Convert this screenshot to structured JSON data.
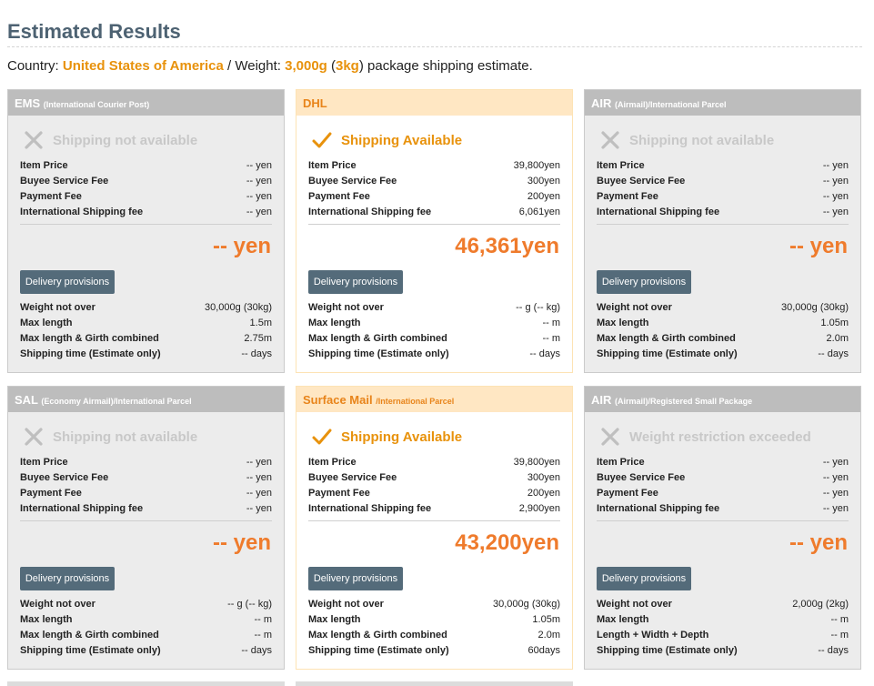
{
  "page": {
    "title": "Estimated Results",
    "summary": {
      "country_label": "Country: ",
      "country": "United States of America",
      "weight_label": " / Weight: ",
      "weight_g": "3,000g",
      "open_paren": " (",
      "weight_kg": "3kg",
      "close_paren": ")",
      "tail": " package shipping estimate."
    }
  },
  "colors": {
    "title": "#4d6272",
    "highlight": "#e8920c",
    "total_price": "#ef7b2c",
    "button": "#546b7a",
    "available_header_bg": "#ffe7c3",
    "unavailable_header_bg": "#bdbdbd"
  },
  "icons": {
    "available": "check-icon",
    "unavailable": "x-icon"
  },
  "cards": [
    {
      "name": "EMS",
      "sub": "(International Courier Post)",
      "available": false,
      "status": "Shipping not available",
      "fees": [
        {
          "label": "Item Price",
          "value": "-- yen"
        },
        {
          "label": "Buyee Service Fee",
          "value": "-- yen"
        },
        {
          "label": "Payment Fee",
          "value": "-- yen"
        },
        {
          "label": "International Shipping fee",
          "value": "-- yen"
        }
      ],
      "total": "-- yen",
      "button": "Delivery provisions",
      "specs": [
        {
          "label": "Weight not over",
          "value": "30,000g (30kg)"
        },
        {
          "label": "Max length",
          "value": "1.5m"
        },
        {
          "label": "Max length & Girth combined",
          "value": "2.75m"
        },
        {
          "label": "Shipping time (Estimate only)",
          "value": "-- days"
        }
      ]
    },
    {
      "name": "DHL",
      "sub": "",
      "available": true,
      "status": "Shipping Available",
      "fees": [
        {
          "label": "Item Price",
          "value": "39,800yen"
        },
        {
          "label": "Buyee Service Fee",
          "value": "300yen"
        },
        {
          "label": "Payment Fee",
          "value": "200yen"
        },
        {
          "label": "International Shipping fee",
          "value": "6,061yen"
        }
      ],
      "total": "46,361yen",
      "button": "Delivery provisions",
      "specs": [
        {
          "label": "Weight not over",
          "value": "-- g (-- kg)"
        },
        {
          "label": "Max length",
          "value": "-- m"
        },
        {
          "label": "Max length & Girth combined",
          "value": "-- m"
        },
        {
          "label": "Shipping time (Estimate only)",
          "value": "-- days"
        }
      ]
    },
    {
      "name": "AIR",
      "sub": "(Airmail)/International Parcel",
      "available": false,
      "status": "Shipping not available",
      "fees": [
        {
          "label": "Item Price",
          "value": "-- yen"
        },
        {
          "label": "Buyee Service Fee",
          "value": "-- yen"
        },
        {
          "label": "Payment Fee",
          "value": "-- yen"
        },
        {
          "label": "International Shipping fee",
          "value": "-- yen"
        }
      ],
      "total": "-- yen",
      "button": "Delivery provisions",
      "specs": [
        {
          "label": "Weight not over",
          "value": "30,000g (30kg)"
        },
        {
          "label": "Max length",
          "value": "1.05m"
        },
        {
          "label": "Max length & Girth combined",
          "value": "2.0m"
        },
        {
          "label": "Shipping time (Estimate only)",
          "value": "-- days"
        }
      ]
    },
    {
      "name": "SAL",
      "sub": "(Economy Airmail)/International Parcel",
      "available": false,
      "status": "Shipping not available",
      "fees": [
        {
          "label": "Item Price",
          "value": "-- yen"
        },
        {
          "label": "Buyee Service Fee",
          "value": "-- yen"
        },
        {
          "label": "Payment Fee",
          "value": "-- yen"
        },
        {
          "label": "International Shipping fee",
          "value": "-- yen"
        }
      ],
      "total": "-- yen",
      "button": "Delivery provisions",
      "specs": [
        {
          "label": "Weight not over",
          "value": "-- g (-- kg)"
        },
        {
          "label": "Max length",
          "value": "-- m"
        },
        {
          "label": "Max length & Girth combined",
          "value": "-- m"
        },
        {
          "label": "Shipping time (Estimate only)",
          "value": "-- days"
        }
      ]
    },
    {
      "name": "Surface Mail",
      "sub": "/International Parcel",
      "available": true,
      "status": "Shipping Available",
      "fees": [
        {
          "label": "Item Price",
          "value": "39,800yen"
        },
        {
          "label": "Buyee Service Fee",
          "value": "300yen"
        },
        {
          "label": "Payment Fee",
          "value": "200yen"
        },
        {
          "label": "International Shipping fee",
          "value": "2,900yen"
        }
      ],
      "total": "43,200yen",
      "button": "Delivery provisions",
      "specs": [
        {
          "label": "Weight not over",
          "value": "30,000g (30kg)"
        },
        {
          "label": "Max length",
          "value": "1.05m"
        },
        {
          "label": "Max length & Girth combined",
          "value": "2.0m"
        },
        {
          "label": "Shipping time (Estimate only)",
          "value": "60days"
        }
      ]
    },
    {
      "name": "AIR",
      "sub": "(Airmail)/Registered Small Package",
      "available": false,
      "status": "Weight restriction exceeded",
      "fees": [
        {
          "label": "Item Price",
          "value": "-- yen"
        },
        {
          "label": "Buyee Service Fee",
          "value": "-- yen"
        },
        {
          "label": "Payment Fee",
          "value": "-- yen"
        },
        {
          "label": "International Shipping fee",
          "value": "-- yen"
        }
      ],
      "total": "-- yen",
      "button": "Delivery provisions",
      "specs": [
        {
          "label": "Weight not over",
          "value": "2,000g (2kg)"
        },
        {
          "label": "Max length",
          "value": "-- m"
        },
        {
          "label": "Length + Width + Depth",
          "value": "-- m"
        },
        {
          "label": "Shipping time (Estimate only)",
          "value": "-- days"
        }
      ]
    }
  ]
}
